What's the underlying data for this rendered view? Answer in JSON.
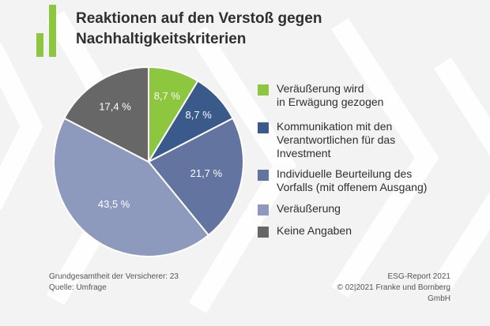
{
  "title_line1": "Reaktionen auf den Verstoß gegen",
  "title_line2": "Nachhaltigkeitskriterien",
  "chart_data": {
    "type": "pie",
    "title": "Reaktionen auf den Verstoß gegen Nachhaltigkeitskriterien",
    "categories": [
      "Veräußerung wird in Erwägung gezogen",
      "Kommunikation mit den Verantwortlichen für das Investment",
      "Individuelle Beurteilung des Vorfalls (mit offenem Ausgang)",
      "Veräußerung",
      "Keine Angaben"
    ],
    "values": [
      8.7,
      8.7,
      21.7,
      43.5,
      17.4
    ],
    "value_labels": [
      "8,7 %",
      "8,7 %",
      "21,7 %",
      "43,5 %",
      "17,4 %"
    ],
    "colors": [
      "#8dc63f",
      "#3a5a8c",
      "#62749f",
      "#8e99be",
      "#676767"
    ],
    "legend": [
      "Veräußerung wird\nin Erwägung gezogen",
      "Kommunikation mit den\nVerantwortlichen für das\nInvestment",
      "Individuelle Beurteilung des\nVorfalls (mit offenem Ausgang)",
      "Veräußerung",
      "Keine Angaben"
    ],
    "legend_position": "right",
    "start_angle_deg": 0,
    "direction": "clockwise"
  },
  "footer": {
    "left_line1": "Grundgesamtheit der Versicherer: 23",
    "left_line2": "Quelle: Umfrage",
    "right_line1": "ESG-Report 2021",
    "right_line2": "© 02|2021 Franke und Bornberg GmbH"
  }
}
